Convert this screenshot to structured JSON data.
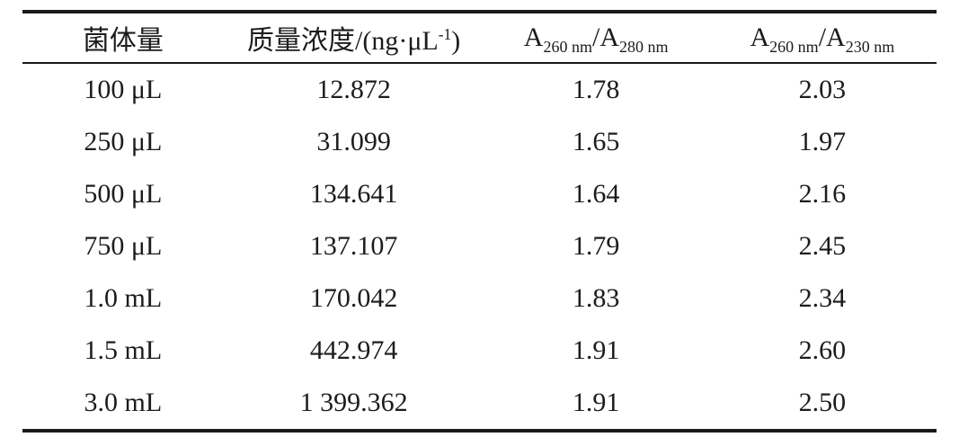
{
  "page": {
    "background_color": "#ffffff",
    "text_color": "#1c1c1c",
    "rule_color": "#1a1a1a"
  },
  "table": {
    "headers": {
      "volume": "菌体量",
      "concentration": {
        "prefix": "质量浓度/(ng·μL",
        "sup": "-1",
        "suffix": ")"
      },
      "ratio_280": {
        "base_left": "A",
        "sub_left": "260 nm",
        "slash": "/",
        "base_right": "A",
        "sub_right": "280 nm"
      },
      "ratio_230": {
        "base_left": "A",
        "sub_left": "260 nm",
        "slash": "/",
        "base_right": "A",
        "sub_right": "230 nm"
      }
    },
    "rows": [
      {
        "volume": "100 μL",
        "concentration": "12.872",
        "ratio_280": "1.78",
        "ratio_230": "2.03"
      },
      {
        "volume": "250 μL",
        "concentration": "31.099",
        "ratio_280": "1.65",
        "ratio_230": "1.97"
      },
      {
        "volume": "500 μL",
        "concentration": "134.641",
        "ratio_280": "1.64",
        "ratio_230": "2.16"
      },
      {
        "volume": "750 μL",
        "concentration": "137.107",
        "ratio_280": "1.79",
        "ratio_230": "2.45"
      },
      {
        "volume": "1.0 mL",
        "concentration": "170.042",
        "ratio_280": "1.83",
        "ratio_230": "2.34"
      },
      {
        "volume": "1.5 mL",
        "concentration": "442.974",
        "ratio_280": "1.91",
        "ratio_230": "2.60"
      },
      {
        "volume": "3.0 mL",
        "concentration": "1 399.362",
        "ratio_280": "1.91",
        "ratio_230": "2.50"
      }
    ]
  },
  "chart_data": {
    "type": "table",
    "columns": [
      "菌体量",
      "质量浓度/(ng·μL⁻¹)",
      "A260 nm/A280 nm",
      "A260 nm/A230 nm"
    ],
    "rows": [
      [
        "100 μL",
        12.872,
        1.78,
        2.03
      ],
      [
        "250 μL",
        31.099,
        1.65,
        1.97
      ],
      [
        "500 μL",
        134.641,
        1.64,
        2.16
      ],
      [
        "750 μL",
        137.107,
        1.79,
        2.45
      ],
      [
        "1.0 mL",
        170.042,
        1.83,
        2.34
      ],
      [
        "1.5 mL",
        442.974,
        1.91,
        2.6
      ],
      [
        "3.0 mL",
        1399.362,
        1.91,
        2.5
      ]
    ]
  }
}
